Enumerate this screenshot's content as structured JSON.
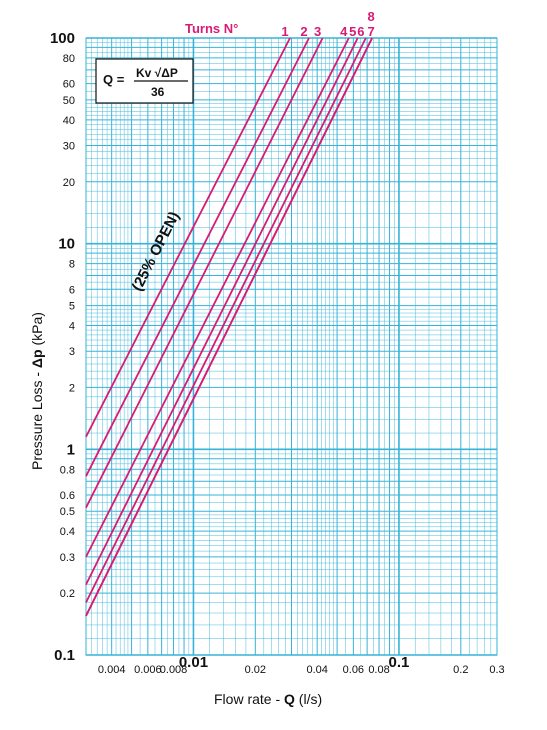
{
  "chart_data": {
    "type": "line",
    "x_scale": "log",
    "y_scale": "log",
    "xlim": [
      0.003,
      0.3
    ],
    "ylim": [
      0.1,
      100
    ],
    "xlabel_prefix": "Flow rate - ",
    "xlabel_symbol": "Q",
    "xlabel_unit": " (l/s)",
    "ylabel_prefix": "Pressure Loss  - ",
    "ylabel_symbol": "Δp",
    "ylabel_unit": " (kPa)",
    "x_ticks": [
      {
        "value": 0.004,
        "label": "0.004",
        "bold": false
      },
      {
        "value": 0.006,
        "label": "0.006",
        "bold": false
      },
      {
        "value": 0.008,
        "label": "0.008",
        "bold": false
      },
      {
        "value": 0.01,
        "label": "0.01",
        "bold": true
      },
      {
        "value": 0.02,
        "label": "0.02",
        "bold": false
      },
      {
        "value": 0.04,
        "label": "0.04",
        "bold": false
      },
      {
        "value": 0.06,
        "label": "0.06",
        "bold": false
      },
      {
        "value": 0.08,
        "label": "0.08",
        "bold": false
      },
      {
        "value": 0.1,
        "label": "0.1",
        "bold": true
      },
      {
        "value": 0.2,
        "label": "0.2",
        "bold": false
      },
      {
        "value": 0.3,
        "label": "0.3",
        "bold": false
      }
    ],
    "y_ticks": [
      {
        "value": 100,
        "label": "100",
        "bold": true
      },
      {
        "value": 80,
        "label": "80",
        "bold": false
      },
      {
        "value": 60,
        "label": "60",
        "bold": false
      },
      {
        "value": 50,
        "label": "50",
        "bold": false
      },
      {
        "value": 40,
        "label": "40",
        "bold": false
      },
      {
        "value": 30,
        "label": "30",
        "bold": false
      },
      {
        "value": 20,
        "label": "20",
        "bold": false
      },
      {
        "value": 10,
        "label": "10",
        "bold": true
      },
      {
        "value": 8,
        "label": "8",
        "bold": false
      },
      {
        "value": 6,
        "label": "6",
        "bold": false
      },
      {
        "value": 5,
        "label": "5",
        "bold": false
      },
      {
        "value": 4,
        "label": "4",
        "bold": false
      },
      {
        "value": 3,
        "label": "3",
        "bold": false
      },
      {
        "value": 2,
        "label": "2",
        "bold": false
      },
      {
        "value": 1,
        "label": "1",
        "bold": true
      },
      {
        "value": 0.8,
        "label": "0.8",
        "bold": false
      },
      {
        "value": 0.6,
        "label": "0.6",
        "bold": false
      },
      {
        "value": 0.5,
        "label": "0.5",
        "bold": false
      },
      {
        "value": 0.4,
        "label": "0.4",
        "bold": false
      },
      {
        "value": 0.3,
        "label": "0.3",
        "bold": false
      },
      {
        "value": 0.2,
        "label": "0.2",
        "bold": false
      },
      {
        "value": 0.1,
        "label": "0.1",
        "bold": true
      }
    ],
    "series_header": "Turns N°",
    "series": [
      {
        "name": "1",
        "points": [
          [
            0.003,
            1.15
          ],
          [
            0.0295,
            100
          ]
        ]
      },
      {
        "name": "2",
        "points": [
          [
            0.003,
            0.74
          ],
          [
            0.0365,
            100
          ]
        ]
      },
      {
        "name": "3",
        "points": [
          [
            0.003,
            0.52
          ],
          [
            0.0425,
            100
          ]
        ]
      },
      {
        "name": "4",
        "points": [
          [
            0.003,
            0.3
          ],
          [
            0.057,
            100
          ]
        ]
      },
      {
        "name": "5",
        "points": [
          [
            0.003,
            0.22
          ],
          [
            0.063,
            100
          ]
        ]
      },
      {
        "name": "6",
        "points": [
          [
            0.003,
            0.18
          ],
          [
            0.069,
            100
          ]
        ]
      },
      {
        "name": "7",
        "points": [
          [
            0.003,
            0.155
          ],
          [
            0.074,
            100
          ]
        ]
      },
      {
        "name": "8",
        "points": [
          [
            0.003,
            0.155
          ],
          [
            0.074,
            100
          ]
        ]
      }
    ],
    "annotation": "(25% OPEN)",
    "annotation_value": {
      "x": 0.0063,
      "y": 6.5
    },
    "formula": {
      "lhs": "Q =",
      "numerator": "Kv √ΔP",
      "denominator": "36"
    },
    "grid": true
  },
  "colors": {
    "grid": "#36b3d9",
    "series": "#d81b75",
    "text": "#111111"
  }
}
